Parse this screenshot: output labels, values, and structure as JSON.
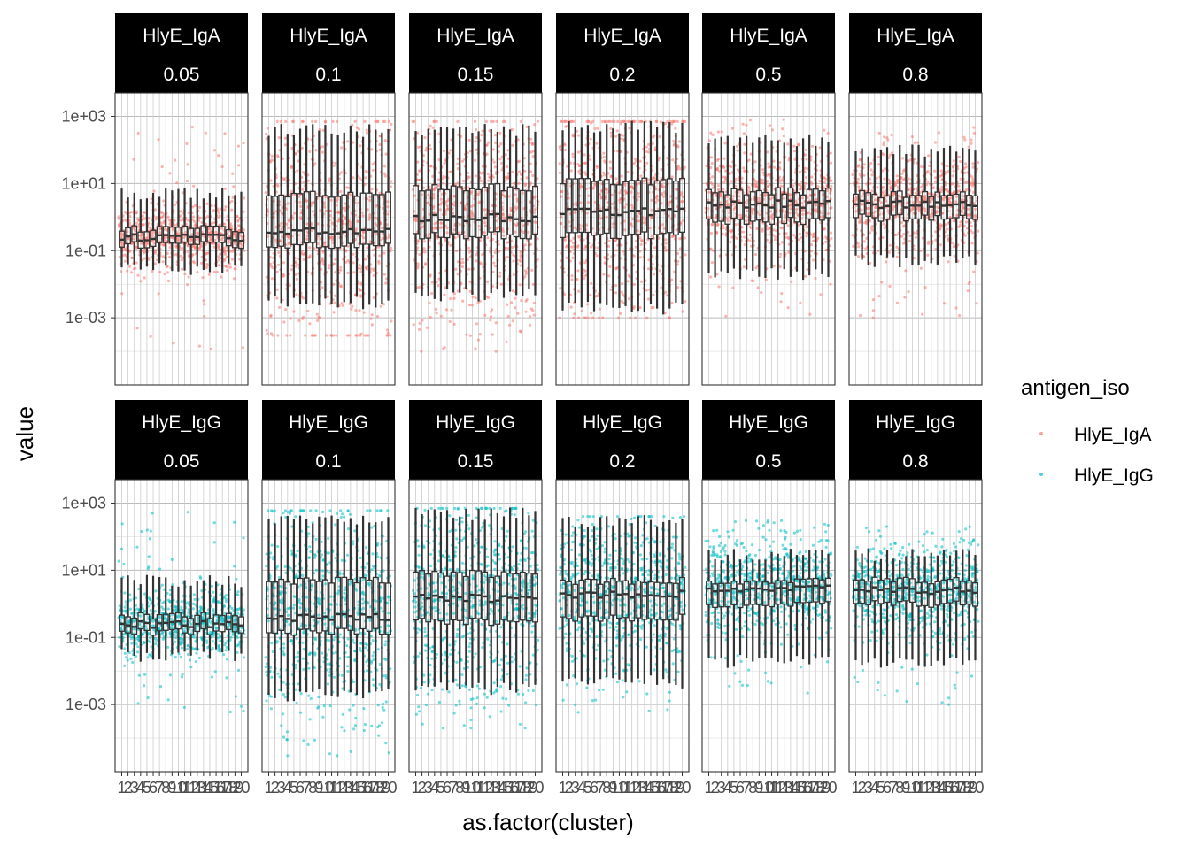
{
  "chart_data": {
    "type": "box-jitter-faceted",
    "xlabel": "as.factor(cluster)",
    "ylabel": "value",
    "y_scale": "log10",
    "y_ticks": [
      "1e-03",
      "1e-01",
      "1e+01",
      "1e+03"
    ],
    "y_tick_values": [
      0.001,
      0.1,
      10,
      1000
    ],
    "ylim": [
      1e-05,
      5000
    ],
    "categories": [
      "1",
      "2",
      "3",
      "4",
      "5",
      "6",
      "7",
      "8",
      "9",
      "10",
      "11",
      "12",
      "13",
      "14",
      "15",
      "16",
      "17",
      "18",
      "19",
      "20"
    ],
    "legend": {
      "title": "antigen_iso",
      "position": "right",
      "items": [
        {
          "label": "HlyE_IgA",
          "color": "#F8766D"
        },
        {
          "label": "HlyE_IgG",
          "color": "#00BFC4"
        }
      ]
    },
    "facet_row_labels": [
      "HlyE_IgA",
      "HlyE_IgG"
    ],
    "facet_col_labels": [
      "0.05",
      "0.1",
      "0.15",
      "0.2",
      "0.5",
      "0.8"
    ],
    "facets": [
      {
        "antigen": "HlyE_IgA",
        "level": "0.05",
        "median": 0.25,
        "q1": 0.15,
        "q3": 0.45,
        "wlo": 0.03,
        "whi": 5,
        "point_lo": 0.0001,
        "point_hi": 600
      },
      {
        "antigen": "HlyE_IgA",
        "level": "0.1",
        "median": 0.4,
        "q1": 0.15,
        "q3": 5,
        "wlo": 0.003,
        "whi": 400,
        "point_lo": 0.0003,
        "point_hi": 700
      },
      {
        "antigen": "HlyE_IgA",
        "level": "0.15",
        "median": 1,
        "q1": 0.3,
        "q3": 8,
        "wlo": 0.005,
        "whi": 400,
        "point_lo": 0.0001,
        "point_hi": 700
      },
      {
        "antigen": "HlyE_IgA",
        "level": "0.2",
        "median": 1.5,
        "q1": 0.3,
        "q3": 12,
        "wlo": 0.002,
        "whi": 500,
        "point_lo": 0.001,
        "point_hi": 700
      },
      {
        "antigen": "HlyE_IgA",
        "level": "0.5",
        "median": 2.5,
        "q1": 0.8,
        "q3": 6,
        "wlo": 0.02,
        "whi": 200,
        "point_lo": 0.001,
        "point_hi": 800
      },
      {
        "antigen": "HlyE_IgA",
        "level": "0.8",
        "median": 2.5,
        "q1": 1,
        "q3": 5,
        "wlo": 0.05,
        "whi": 100,
        "point_lo": 0.001,
        "point_hi": 800
      },
      {
        "antigen": "HlyE_IgG",
        "level": "0.05",
        "median": 0.25,
        "q1": 0.15,
        "q3": 0.45,
        "wlo": 0.03,
        "whi": 5,
        "point_lo": 0.0003,
        "point_hi": 600
      },
      {
        "antigen": "HlyE_IgG",
        "level": "0.1",
        "median": 0.4,
        "q1": 0.15,
        "q3": 5,
        "wlo": 0.002,
        "whi": 300,
        "point_lo": 3e-05,
        "point_hi": 600
      },
      {
        "antigen": "HlyE_IgG",
        "level": "0.15",
        "median": 1.5,
        "q1": 0.3,
        "q3": 8,
        "wlo": 0.003,
        "whi": 500,
        "point_lo": 0.0002,
        "point_hi": 700
      },
      {
        "antigen": "HlyE_IgG",
        "level": "0.2",
        "median": 2,
        "q1": 0.4,
        "q3": 5,
        "wlo": 0.005,
        "whi": 300,
        "point_lo": 0.0005,
        "point_hi": 400
      },
      {
        "antigen": "HlyE_IgG",
        "level": "0.5",
        "median": 3,
        "q1": 1,
        "q3": 5,
        "wlo": 0.02,
        "whi": 30,
        "point_lo": 0.002,
        "point_hi": 300
      },
      {
        "antigen": "HlyE_IgG",
        "level": "0.8",
        "median": 2.5,
        "q1": 1,
        "q3": 5,
        "wlo": 0.02,
        "whi": 30,
        "point_lo": 0.001,
        "point_hi": 200
      }
    ]
  }
}
